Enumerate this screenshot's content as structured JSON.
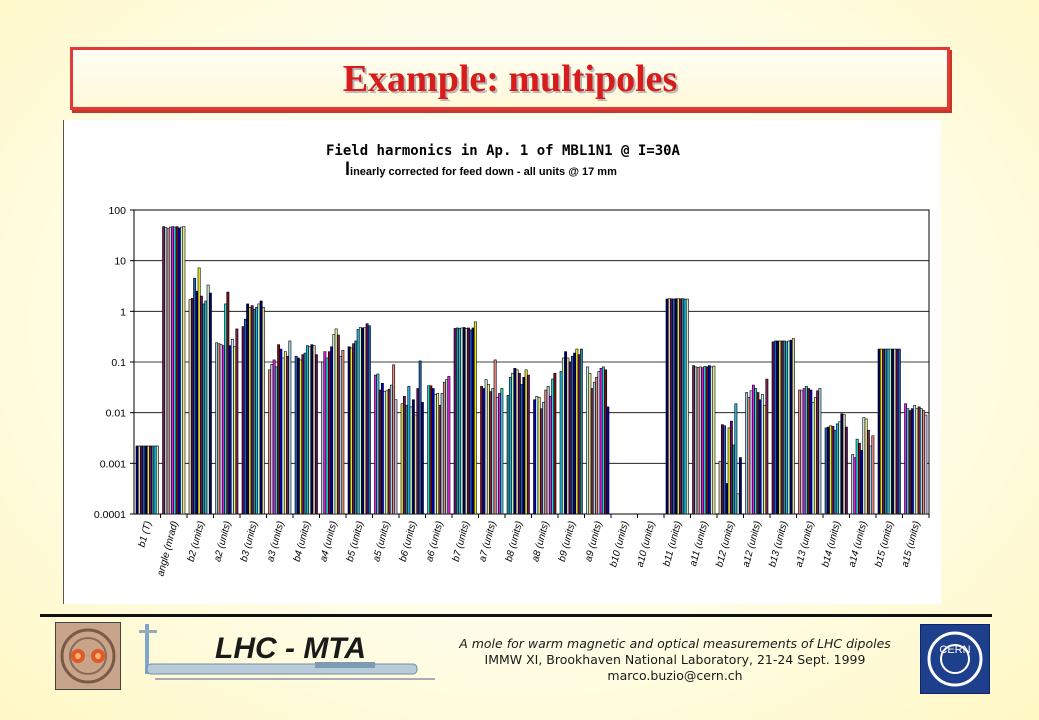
{
  "slide": {
    "title": "Example: multipoles"
  },
  "footer": {
    "line1": "A mole for warm magnetic and optical measurements  of LHC dipoles",
    "line2": "IMMW XI, Brookhaven National Laboratory, 21-24 Sept. 1999",
    "line3": "marco.buzio@cern.ch",
    "logo_text": "LHC - MTA",
    "cern_text": "CERN"
  },
  "colors": {
    "title_red": "#d81b1b",
    "bar_palette": [
      "#000066",
      "#7a1f52",
      "#d8d8a8",
      "#9fd4e6",
      "#5a0a5a",
      "#e48a7a",
      "#1d5fb5",
      "#c8c8f0",
      "#00006e",
      "#e020e0",
      "#e8e820",
      "#20d8d8",
      "#6a106a",
      "#7a0d0d",
      "#2a8a8a",
      "#0000cc",
      "#20b8e8",
      "#c8f0f0",
      "#c8f0c8",
      "#f0f080"
    ]
  },
  "chart_data": {
    "type": "bar",
    "title": "Field harmonics in Ap. 1 of MBL1N1 @ I=30A",
    "subtitle_first": "l",
    "subtitle_rest": "inearly corrected for feed down - all units @ 17 mm",
    "y_scale": "log",
    "ylim": [
      0.0001,
      100
    ],
    "y_ticks": [
      "100",
      "10",
      "1",
      "0.1",
      "0.01",
      "0.001",
      "0.0001"
    ],
    "y_tick_values": [
      100,
      10,
      1,
      0.1,
      0.01,
      0.001,
      0.0001
    ],
    "grid": "horizontal",
    "legend": "none",
    "categories": [
      "b1 (T)",
      "angle (mrad)",
      "b2 (units)",
      "a2 (units)",
      "b3 (units)",
      "a3 (units)",
      "b4 (units)",
      "a4 (units)",
      "b5 (units)",
      "a5 (units)",
      "b6 (units)",
      "a6 (units)",
      "b7 (units)",
      "a7 (units)",
      "b8 (units)",
      "a8 (units)",
      "b9 (units)",
      "a9 (units)",
      "b10 (units)",
      "a10 (units)",
      "b11 (units)",
      "a11 (units)",
      "b12 (units)",
      "a12 (units)",
      "b13 (units)",
      "a13 (units)",
      "b14 (units)",
      "a14 (units)",
      "b15 (units)",
      "a15 (units)"
    ],
    "values": [
      [
        0.0022,
        0.0022,
        0.0022,
        0.0022,
        0.0022,
        0.0022,
        0.0022,
        0.0022,
        0.0022,
        0.0022
      ],
      [
        47,
        45,
        43,
        46,
        47,
        46,
        47,
        44,
        46,
        47
      ],
      [
        1.7,
        1.8,
        4.5,
        2.5,
        7.2,
        2.0,
        1.4,
        1.6,
        3.3,
        2.3
      ],
      [
        0.24,
        0.23,
        0.22,
        0.21,
        1.4,
        2.4,
        0.21,
        0.28,
        0.2,
        0.45
      ],
      [
        0.5,
        0.7,
        1.4,
        1.2,
        1.3,
        1.1,
        1.2,
        1.4,
        1.6,
        1.2
      ],
      [
        0.07,
        0.09,
        0.11,
        0.08,
        0.22,
        0.18,
        0.12,
        0.16,
        0.13,
        0.26
      ],
      [
        0.13,
        0.12,
        0.11,
        0.14,
        0.15,
        0.21,
        0.2,
        0.22,
        0.21,
        0.14
      ],
      [
        0.1,
        0.16,
        0.12,
        0.16,
        0.2,
        0.35,
        0.45,
        0.34,
        0.13,
        0.17
      ],
      [
        0.2,
        0.19,
        0.23,
        0.26,
        0.44,
        0.48,
        0.47,
        0.48,
        0.57,
        0.52
      ],
      [
        0.055,
        0.058,
        0.028,
        0.038,
        0.026,
        0.027,
        0.029,
        0.035,
        0.088,
        0.018
      ],
      [
        0.015,
        0.021,
        0.014,
        0.033,
        0.013,
        0.018,
        0.009,
        0.03,
        0.105,
        0.016
      ],
      [
        0.034,
        0.034,
        0.03,
        0.023,
        0.024,
        0.014,
        0.024,
        0.04,
        0.045,
        0.052
      ],
      [
        0.46,
        0.47,
        0.46,
        0.47,
        0.48,
        0.46,
        0.47,
        0.43,
        0.47,
        0.62
      ],
      [
        0.033,
        0.03,
        0.045,
        0.036,
        0.026,
        0.03,
        0.11,
        0.02,
        0.024,
        0.03
      ],
      [
        0.022,
        0.05,
        0.06,
        0.075,
        0.07,
        0.06,
        0.036,
        0.05,
        0.07,
        0.055
      ],
      [
        0.018,
        0.021,
        0.02,
        0.012,
        0.016,
        0.028,
        0.033,
        0.021,
        0.046,
        0.06
      ],
      [
        0.065,
        0.12,
        0.16,
        0.12,
        0.1,
        0.13,
        0.15,
        0.18,
        0.14,
        0.18
      ],
      [
        0.08,
        0.06,
        0.03,
        0.04,
        0.05,
        0.065,
        0.075,
        0.08,
        0.07,
        0.013
      ],
      [],
      [],
      [
        1.75,
        1.78,
        1.76,
        1.75,
        1.78,
        1.77,
        1.77,
        1.78,
        1.74,
        1.75
      ],
      [
        0.085,
        0.08,
        0.078,
        0.08,
        0.077,
        0.082,
        0.08,
        0.085,
        0.08,
        0.083
      ],
      [
        0.0011,
        0.0058,
        0.0055,
        0.0004,
        0.005,
        0.0068,
        0.0023,
        0.015,
        0.00025,
        0.0013
      ],
      [
        0.025,
        0.02,
        0.027,
        0.035,
        0.03,
        0.025,
        0.018,
        0.023,
        0.014,
        0.046
      ],
      [
        0.25,
        0.26,
        0.26,
        0.26,
        0.26,
        0.26,
        0.25,
        0.26,
        0.27,
        0.29
      ],
      [
        0.028,
        0.027,
        0.03,
        0.033,
        0.03,
        0.028,
        0.016,
        0.02,
        0.027,
        0.03
      ],
      [
        0.005,
        0.0052,
        0.0055,
        0.0054,
        0.0045,
        0.006,
        0.0066,
        0.0095,
        0.0092,
        0.0052
      ],
      [
        0.0015,
        0.0013,
        0.003,
        0.0025,
        0.0018,
        0.008,
        0.0075,
        0.0045,
        0.0022,
        0.0035
      ],
      [
        0.18,
        0.18,
        0.18,
        0.18,
        0.18,
        0.18,
        0.18,
        0.18,
        0.18,
        0.18
      ],
      [
        0.015,
        0.012,
        0.011,
        0.012,
        0.014,
        0.012,
        0.013,
        0.012,
        0.011,
        0.009
      ]
    ]
  }
}
